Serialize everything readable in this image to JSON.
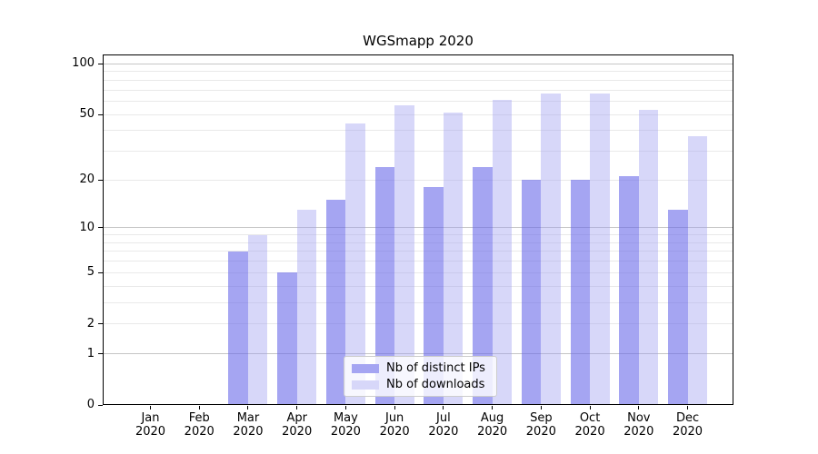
{
  "title": "WGSmapp 2020",
  "chart_data": {
    "type": "bar",
    "title": "WGSmapp 2020",
    "categories": [
      "Jan",
      "Feb",
      "Mar",
      "Apr",
      "May",
      "Jun",
      "Jul",
      "Aug",
      "Sep",
      "Oct",
      "Nov",
      "Dec"
    ],
    "category_year": "2020",
    "series": [
      {
        "name": "Nb of distinct IPs",
        "color": "#a5a5f2",
        "fill": "rgba(105,105,233,0.6)",
        "values": [
          0,
          0,
          7,
          5,
          15,
          24,
          18,
          24,
          20,
          20,
          21,
          13
        ]
      },
      {
        "name": "Nb of downloads",
        "color": "#d7d7f9",
        "fill": "rgba(155,155,240,0.4)",
        "values": [
          0,
          0,
          9,
          13,
          44,
          57,
          51,
          61,
          67,
          67,
          53,
          37
        ]
      }
    ],
    "y_scale": "log10(value+1)",
    "ylim": [
      0,
      110
    ],
    "y_axis": {
      "labeled_ticks": [
        0,
        1,
        2,
        5,
        10,
        20,
        50,
        100
      ],
      "major_gridlines": [
        1,
        10,
        100
      ],
      "minor_gridlines": [
        2,
        3,
        4,
        5,
        6,
        7,
        8,
        9,
        20,
        30,
        40,
        50,
        60,
        70,
        80,
        90
      ]
    },
    "grid": true,
    "legend_position": "lower center"
  },
  "colors": {
    "gridline_minor": "#e9e9e9",
    "gridline_major": "#c6c6c6",
    "spine": "#000000",
    "text": "#111111",
    "legend_border": "#cccccc",
    "bar_dark": "#a5a5f2",
    "bar_light": "#d7d7f9"
  }
}
